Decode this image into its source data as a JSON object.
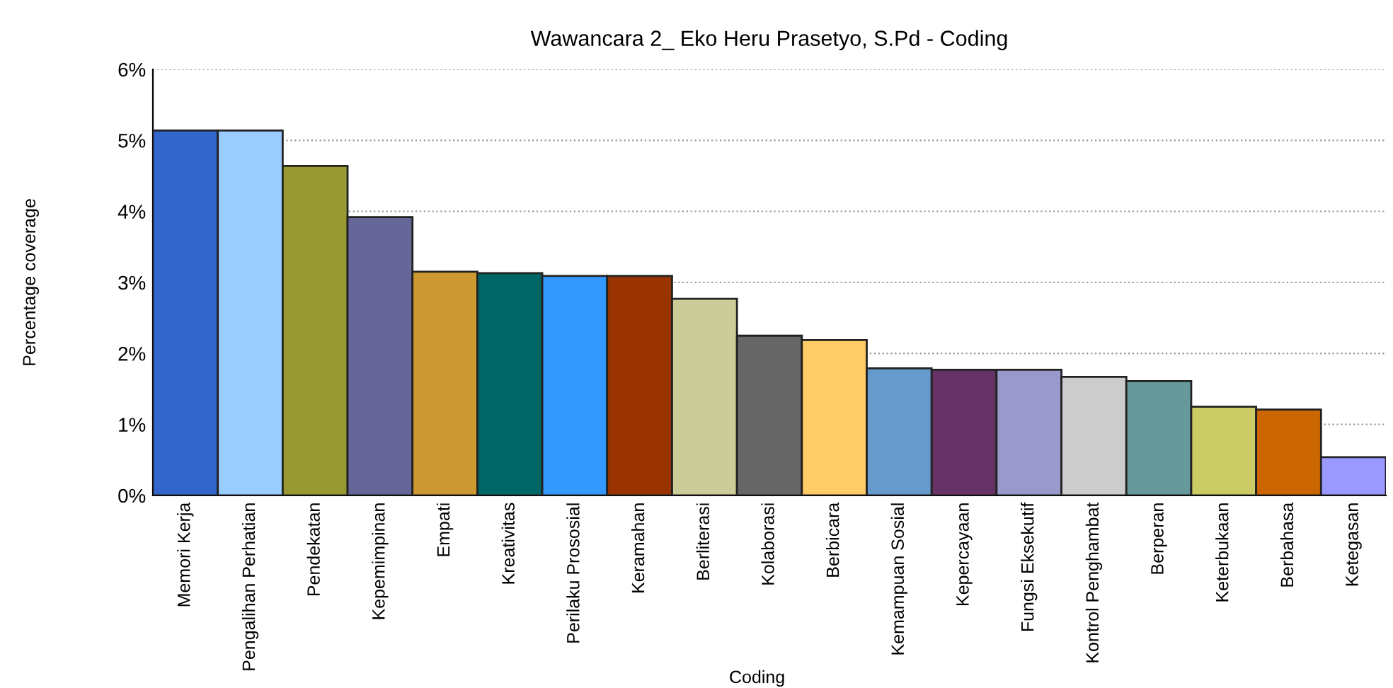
{
  "chart_data": {
    "type": "bar",
    "title": "Wawancara 2_ Eko Heru Prasetyo, S.Pd - Coding",
    "xlabel": "Coding",
    "ylabel": "Percentage coverage",
    "categories": [
      "Memori Kerja",
      "Pengalihan Perhatian",
      "Pendekatan",
      "Kepemimpinan",
      "Empati",
      "Kreativitas",
      "Perilaku Prososial",
      "Keramahan",
      "Berliterasi",
      "Kolaborasi",
      "Berbicara",
      "Kemampuan Sosial",
      "Kepercayaan",
      "Fungsi Eksekutif",
      "Kontrol Penghambat",
      "Berperan",
      "Keterbukaan",
      "Berbahasa",
      "Ketegasan"
    ],
    "values": [
      5.14,
      5.14,
      4.64,
      3.92,
      3.15,
      3.13,
      3.09,
      3.09,
      2.77,
      2.25,
      2.19,
      1.79,
      1.77,
      1.77,
      1.67,
      1.61,
      1.25,
      1.21,
      0.54
    ],
    "colors": [
      "#3366cc",
      "#99ccff",
      "#999933",
      "#666699",
      "#cc9933",
      "#006666",
      "#3399ff",
      "#993300",
      "#cccc99",
      "#666666",
      "#ffcc66",
      "#6699cc",
      "#663366",
      "#9999cc",
      "#cccccc",
      "#669999",
      "#cccc66",
      "#cc6600",
      "#9999ff"
    ],
    "ylim": [
      0,
      6
    ],
    "yticks": [
      {
        "value": 0,
        "label": "0%"
      },
      {
        "value": 1,
        "label": "1%"
      },
      {
        "value": 2,
        "label": "2%"
      },
      {
        "value": 3,
        "label": "3%"
      },
      {
        "value": 4,
        "label": "4%"
      },
      {
        "value": 5,
        "label": "5%"
      },
      {
        "value": 6,
        "label": "6%"
      }
    ],
    "grid": "y"
  }
}
